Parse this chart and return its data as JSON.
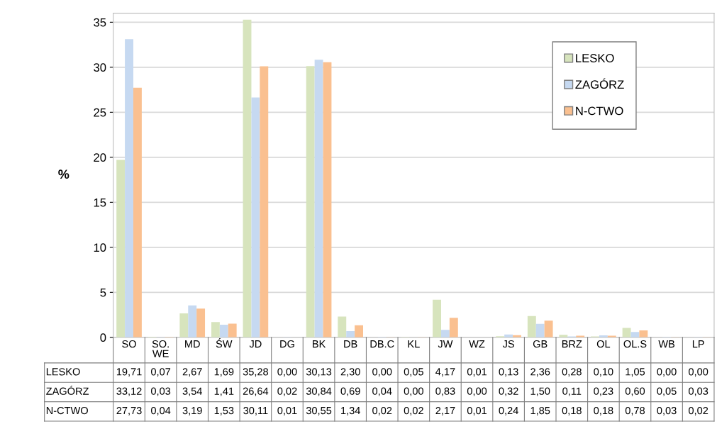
{
  "chart_data": {
    "type": "bar",
    "ylabel": "%",
    "categories": [
      "SO",
      "SO. WE",
      "MD",
      "ŚW",
      "JD",
      "DG",
      "BK",
      "DB",
      "DB.C",
      "KL",
      "JW",
      "WZ",
      "JS",
      "GB",
      "BRZ",
      "OL",
      "OL.S",
      "WB",
      "LP"
    ],
    "series": [
      {
        "name": "LESKO",
        "color": "#d7e4bd",
        "values": [
          19.71,
          0.07,
          2.67,
          1.69,
          35.28,
          0.0,
          30.13,
          2.3,
          0.0,
          0.05,
          4.17,
          0.01,
          0.13,
          2.36,
          0.28,
          0.1,
          1.05,
          0.0,
          0.0
        ],
        "value_labels": [
          "19,71",
          "0,07",
          "2,67",
          "1,69",
          "35,28",
          "0,00",
          "30,13",
          "2,30",
          "0,00",
          "0,05",
          "4,17",
          "0,01",
          "0,13",
          "2,36",
          "0,28",
          "0,10",
          "1,05",
          "0,00",
          "0,00"
        ]
      },
      {
        "name": "ZAGÓRZ",
        "color": "#c6d9f1",
        "values": [
          33.12,
          0.03,
          3.54,
          1.41,
          26.64,
          0.02,
          30.84,
          0.69,
          0.04,
          0.0,
          0.83,
          0.0,
          0.32,
          1.5,
          0.11,
          0.23,
          0.6,
          0.05,
          0.03
        ],
        "value_labels": [
          "33,12",
          "0,03",
          "3,54",
          "1,41",
          "26,64",
          "0,02",
          "30,84",
          "0,69",
          "0,04",
          "0,00",
          "0,83",
          "0,00",
          "0,32",
          "1,50",
          "0,11",
          "0,23",
          "0,60",
          "0,05",
          "0,03"
        ]
      },
      {
        "name": "N-CTWO",
        "color": "#fac090",
        "values": [
          27.73,
          0.04,
          3.19,
          1.53,
          30.11,
          0.01,
          30.55,
          1.34,
          0.02,
          0.02,
          2.17,
          0.01,
          0.24,
          1.85,
          0.18,
          0.18,
          0.78,
          0.03,
          0.02
        ],
        "value_labels": [
          "27,73",
          "0,04",
          "3,19",
          "1,53",
          "30,11",
          "0,01",
          "30,55",
          "1,34",
          "0,02",
          "0,02",
          "2,17",
          "0,01",
          "0,24",
          "1,85",
          "0,18",
          "0,18",
          "0,78",
          "0,03",
          "0,02"
        ]
      }
    ],
    "ylim": [
      0,
      36
    ],
    "yticks": [
      0,
      5,
      10,
      15,
      20,
      25,
      30,
      35
    ],
    "grid": "y",
    "legend": "top right"
  }
}
